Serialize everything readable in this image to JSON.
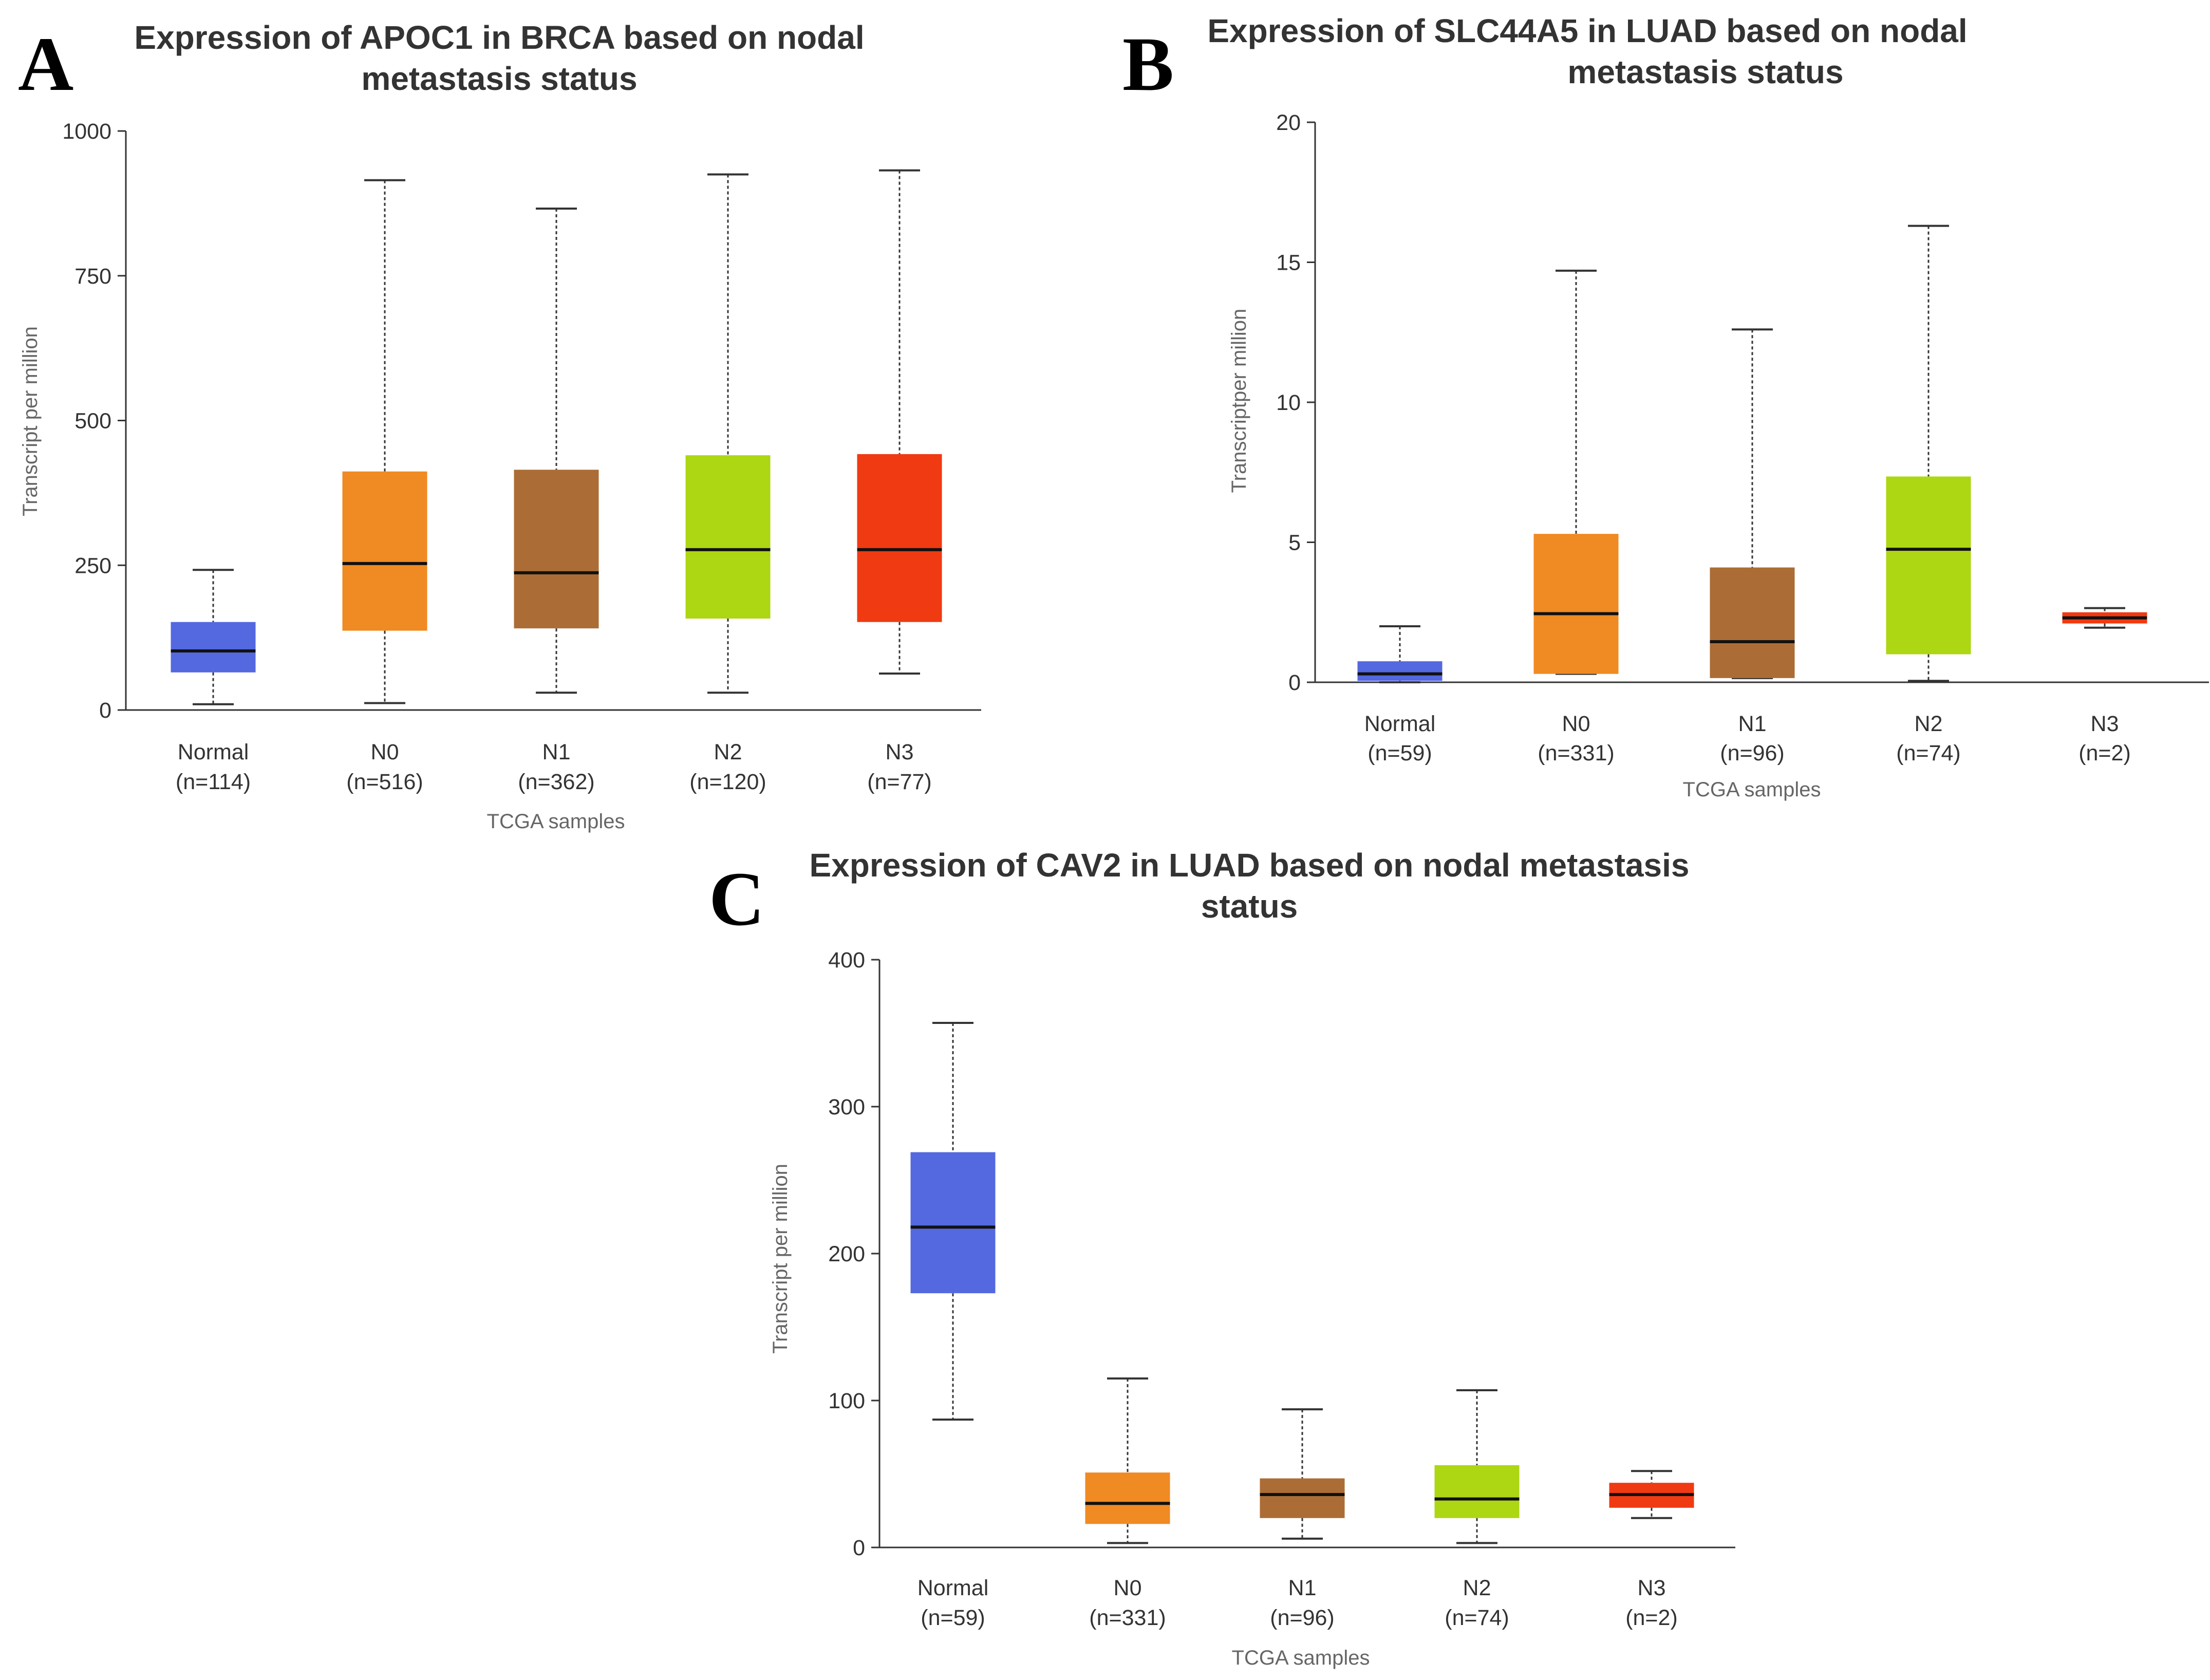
{
  "chart_data": [
    {
      "panel_letter": "A",
      "type": "boxplot",
      "title_lines": [
        "Expression of APOC1 in BRCA based on nodal",
        "metastasis status"
      ],
      "ylabel": "Transcript per million",
      "xlabel": "TCGA samples",
      "ylim": [
        0,
        1000
      ],
      "yticks": [
        0,
        250,
        500,
        750,
        1000
      ],
      "groups": [
        {
          "name": "Normal",
          "n": "(n=114)",
          "color": "#5468e0",
          "min": 10,
          "q1": 65,
          "median": 102,
          "q3": 152,
          "max": 242
        },
        {
          "name": "N0",
          "n": "(n=516)",
          "color": "#f08a22",
          "min": 12,
          "q1": 137,
          "median": 253,
          "q3": 412,
          "max": 915
        },
        {
          "name": "N1",
          "n": "(n=362)",
          "color": "#ab6d35",
          "min": 30,
          "q1": 141,
          "median": 237,
          "q3": 415,
          "max": 866
        },
        {
          "name": "N2",
          "n": "(n=120)",
          "color": "#add613",
          "min": 30,
          "q1": 158,
          "median": 277,
          "q3": 440,
          "max": 925
        },
        {
          "name": "N3",
          "n": "(n=77)",
          "color": "#f03a12",
          "min": 63,
          "q1": 152,
          "median": 277,
          "q3": 442,
          "max": 932
        }
      ]
    },
    {
      "panel_letter": "B",
      "type": "boxplot",
      "title_lines": [
        "Expression of SLC44A5 in LUAD based on nodal",
        "metastasis status"
      ],
      "ylabel": "Transcriptper million",
      "xlabel": "TCGA samples",
      "ylim": [
        0,
        20
      ],
      "yticks": [
        0,
        5,
        10,
        15,
        20
      ],
      "groups": [
        {
          "name": "Normal",
          "n": "(n=59)",
          "color": "#5468e0",
          "min": 0.0,
          "q1": 0.05,
          "median": 0.3,
          "q3": 0.75,
          "max": 2.0
        },
        {
          "name": "N0",
          "n": "(n=331)",
          "color": "#f08a22",
          "min": 0.3,
          "q1": 0.3,
          "median": 2.45,
          "q3": 5.3,
          "max": 14.7
        },
        {
          "name": "N1",
          "n": "(n=96)",
          "color": "#ab6d35",
          "min": 0.15,
          "q1": 0.15,
          "median": 1.45,
          "q3": 4.1,
          "max": 12.6
        },
        {
          "name": "N2",
          "n": "(n=74)",
          "color": "#add613",
          "min": 0.05,
          "q1": 1.0,
          "median": 4.75,
          "q3": 7.35,
          "max": 16.3
        },
        {
          "name": "N3",
          "n": "(n=2)",
          "color": "#f03a12",
          "min": 1.95,
          "q1": 2.1,
          "median": 2.3,
          "q3": 2.5,
          "max": 2.65
        }
      ]
    },
    {
      "panel_letter": "C",
      "type": "boxplot",
      "title_lines": [
        "Expression of CAV2 in LUAD based on nodal metastasis",
        "status"
      ],
      "ylabel": "Transcript per million",
      "xlabel": "TCGA samples",
      "ylim": [
        0,
        400
      ],
      "yticks": [
        0,
        100,
        200,
        300,
        400
      ],
      "groups": [
        {
          "name": "Normal",
          "n": "(n=59)",
          "color": "#5468e0",
          "min": 87,
          "q1": 173,
          "median": 218,
          "q3": 269,
          "max": 357
        },
        {
          "name": "N0",
          "n": "(n=331)",
          "color": "#f08a22",
          "min": 3,
          "q1": 16,
          "median": 30,
          "q3": 51,
          "max": 115
        },
        {
          "name": "N1",
          "n": "(n=96)",
          "color": "#ab6d35",
          "min": 6,
          "q1": 20,
          "median": 36,
          "q3": 47,
          "max": 94
        },
        {
          "name": "N2",
          "n": "(n=74)",
          "color": "#add613",
          "min": 3,
          "q1": 20,
          "median": 33,
          "q3": 56,
          "max": 107
        },
        {
          "name": "N3",
          "n": "(n=2)",
          "color": "#f03a12",
          "min": 20,
          "q1": 27,
          "median": 36,
          "q3": 44,
          "max": 52
        }
      ]
    }
  ]
}
